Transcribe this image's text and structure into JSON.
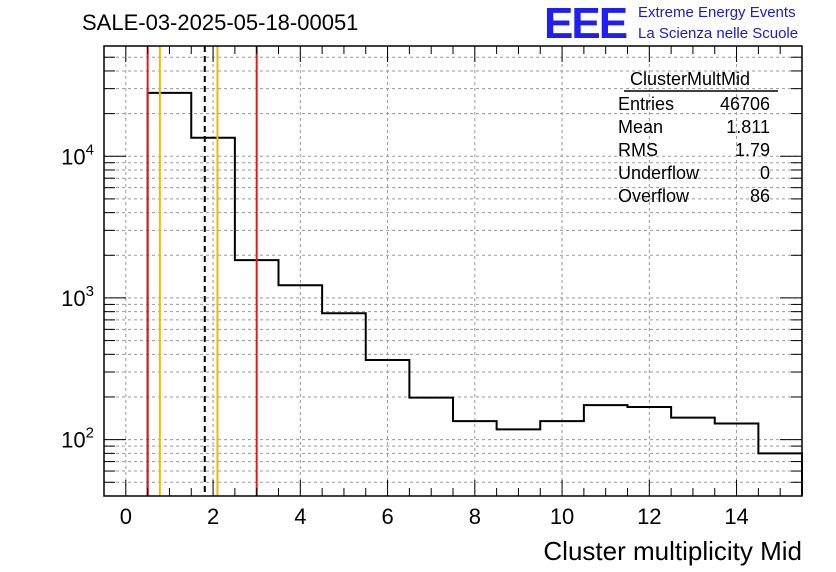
{
  "header": {
    "title": "SALE-03-2025-05-18-00051",
    "logo_text": "EEE",
    "logo_line1": "Extreme Energy Events",
    "logo_line2": "La Scienza nelle Scuole"
  },
  "colors": {
    "histogram": "#000000",
    "grid": "#9a9a9a",
    "red_line": "#e31a1a",
    "orange_line": "#f5b800",
    "logo_blue": "#1f1ff0"
  },
  "chart_data": {
    "type": "histogram",
    "xlabel": "Cluster multiplicity Mid",
    "ylabel": "",
    "xlim": [
      -0.5,
      15.5
    ],
    "ylim": [
      40,
      60000
    ],
    "yscale": "log",
    "grid": true,
    "x_ticks": [
      "0",
      "2",
      "4",
      "6",
      "8",
      "10",
      "12",
      "14"
    ],
    "y_ticks": [
      {
        "value": 100,
        "base": "10",
        "exp": "2"
      },
      {
        "value": 1000,
        "base": "10",
        "exp": "3"
      },
      {
        "value": 10000,
        "base": "10",
        "exp": "4"
      }
    ],
    "bin_edges": [
      0.5,
      1.5,
      2.5,
      3.5,
      4.5,
      5.5,
      6.5,
      7.5,
      8.5,
      9.5,
      10.5,
      11.5,
      12.5,
      13.5,
      14.5,
      15.5
    ],
    "bin_values": [
      28000,
      13500,
      1850,
      1230,
      780,
      365,
      198,
      135,
      118,
      135,
      175,
      170,
      143,
      130,
      80
    ],
    "vertical_lines": [
      {
        "x": 0.5,
        "color": "red",
        "style": "solid"
      },
      {
        "x": 3.0,
        "color": "red",
        "style": "solid"
      },
      {
        "x": 0.78,
        "color": "orange",
        "style": "solid"
      },
      {
        "x": 2.1,
        "color": "orange",
        "style": "solid"
      },
      {
        "x": 1.81,
        "color": "black",
        "style": "dashed"
      }
    ],
    "stats": {
      "name": "ClusterMultMid",
      "rows": [
        {
          "label": "Entries",
          "value": "46706"
        },
        {
          "label": "Mean",
          "value": "1.811"
        },
        {
          "label": "RMS",
          "value": "1.79"
        },
        {
          "label": "Underflow",
          "value": "0"
        },
        {
          "label": "Overflow",
          "value": "86"
        }
      ]
    }
  }
}
